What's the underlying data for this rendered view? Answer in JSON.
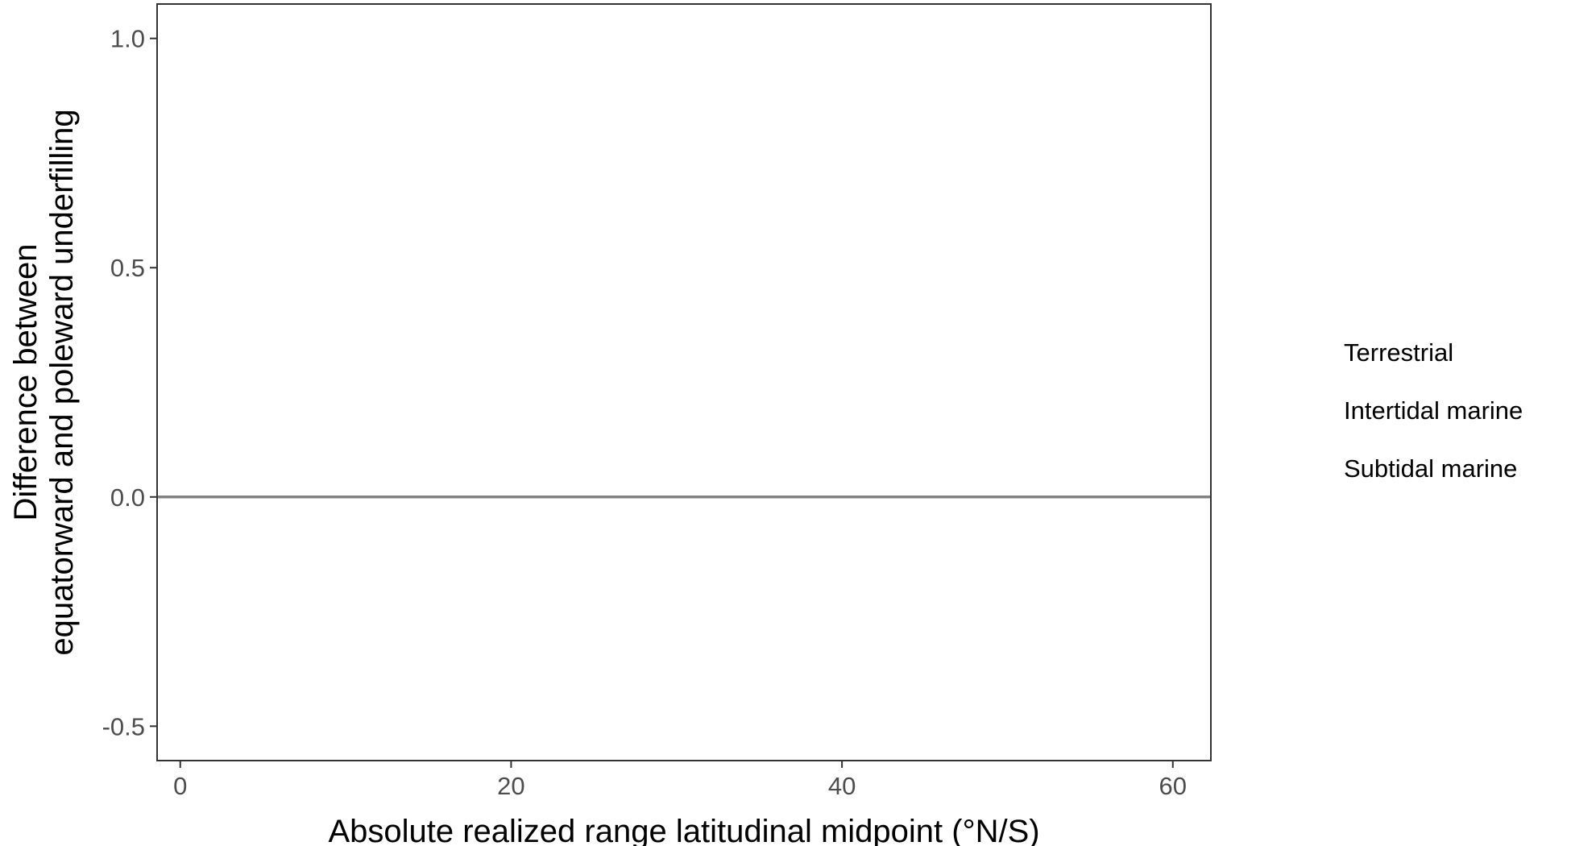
{
  "chart_data": {
    "type": "scatter",
    "xlabel": "Absolute realized range latitudinal midpoint (°N/S)",
    "ylabel_lines": [
      "Difference between",
      "equatorward and poleward underfilling"
    ],
    "xlim": [
      -1.4,
      62.3
    ],
    "ylim": [
      -0.575,
      1.075
    ],
    "x_ticks": [
      {
        "value": 0,
        "label": "0"
      },
      {
        "value": 20,
        "label": "20"
      },
      {
        "value": 40,
        "label": "40"
      },
      {
        "value": 60,
        "label": "60"
      }
    ],
    "y_ticks": [
      {
        "value": 1.0,
        "label": "1.0"
      },
      {
        "value": 0.5,
        "label": "0.5"
      },
      {
        "value": 0.0,
        "label": "0.0"
      },
      {
        "value": -0.5,
        "label": "-0.5"
      }
    ],
    "reference_line": {
      "y": 0.0,
      "color": "#808080"
    },
    "grid": false,
    "legend_position": "right",
    "series": [
      {
        "name": "Terrestrial",
        "points": []
      },
      {
        "name": "Intertidal marine",
        "points": []
      },
      {
        "name": "Subtidal marine",
        "points": []
      }
    ],
    "colors": {
      "panel_border": "#333333",
      "tick_mark": "#333333",
      "tick_label": "#4d4d4d"
    }
  }
}
